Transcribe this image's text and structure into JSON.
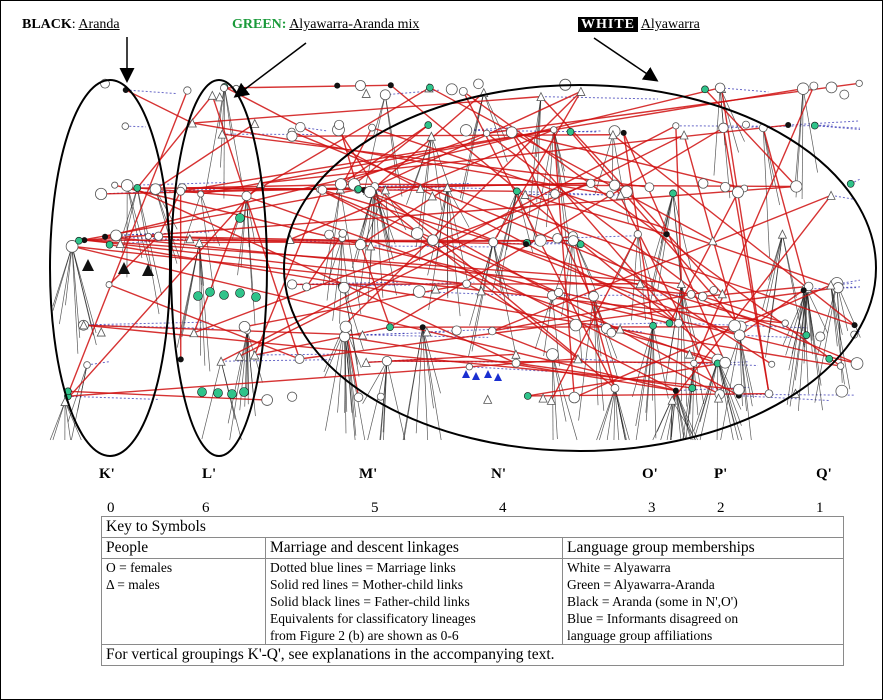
{
  "header": {
    "black_label": "BLACK",
    "black_value": "Aranda",
    "green_label": "GREEN:",
    "green_value": "Alyawarra-Aranda mix",
    "white_label": "WHITE",
    "white_value": "Alyawarra"
  },
  "groups": [
    {
      "label": "K'",
      "number": "0"
    },
    {
      "label": "L'",
      "number": "6"
    },
    {
      "label": "M'",
      "number": "5"
    },
    {
      "label": "N'",
      "number": "4"
    },
    {
      "label": "O'",
      "number": "3"
    },
    {
      "label": "P'",
      "number": "2"
    },
    {
      "label": "Q'",
      "number": "1"
    }
  ],
  "key": {
    "title": "Key to Symbols",
    "col1_head": "People",
    "col2_head": "Marriage and descent linkages",
    "col3_head": "Language group memberships",
    "people": [
      "O = females",
      "Δ = males"
    ],
    "linkages": [
      "Dotted blue lines = Marriage links",
      "Solid red lines = Mother-child links",
      "Solid black lines = Father-child links",
      "Equivalents for classificatory lineages",
      "from Figure 2 (b) are shown as 0-6"
    ],
    "languages": [
      "White = Alyawarra",
      "Green = Alyawarra-Aranda",
      "Black = Aranda (some in N',O')",
      "Blue = Informants disagreed on",
      "language group affiliations"
    ],
    "footer": "For vertical groupings K'-Q', see explanations in the accompanying text."
  },
  "colors": {
    "green_header": "#1a9a3a",
    "mother_child": "#d01010",
    "father_child": "#222222",
    "marriage": "#2a2ab0",
    "green_node": "#2fc38a",
    "blue_node": "#1a2fd0"
  }
}
